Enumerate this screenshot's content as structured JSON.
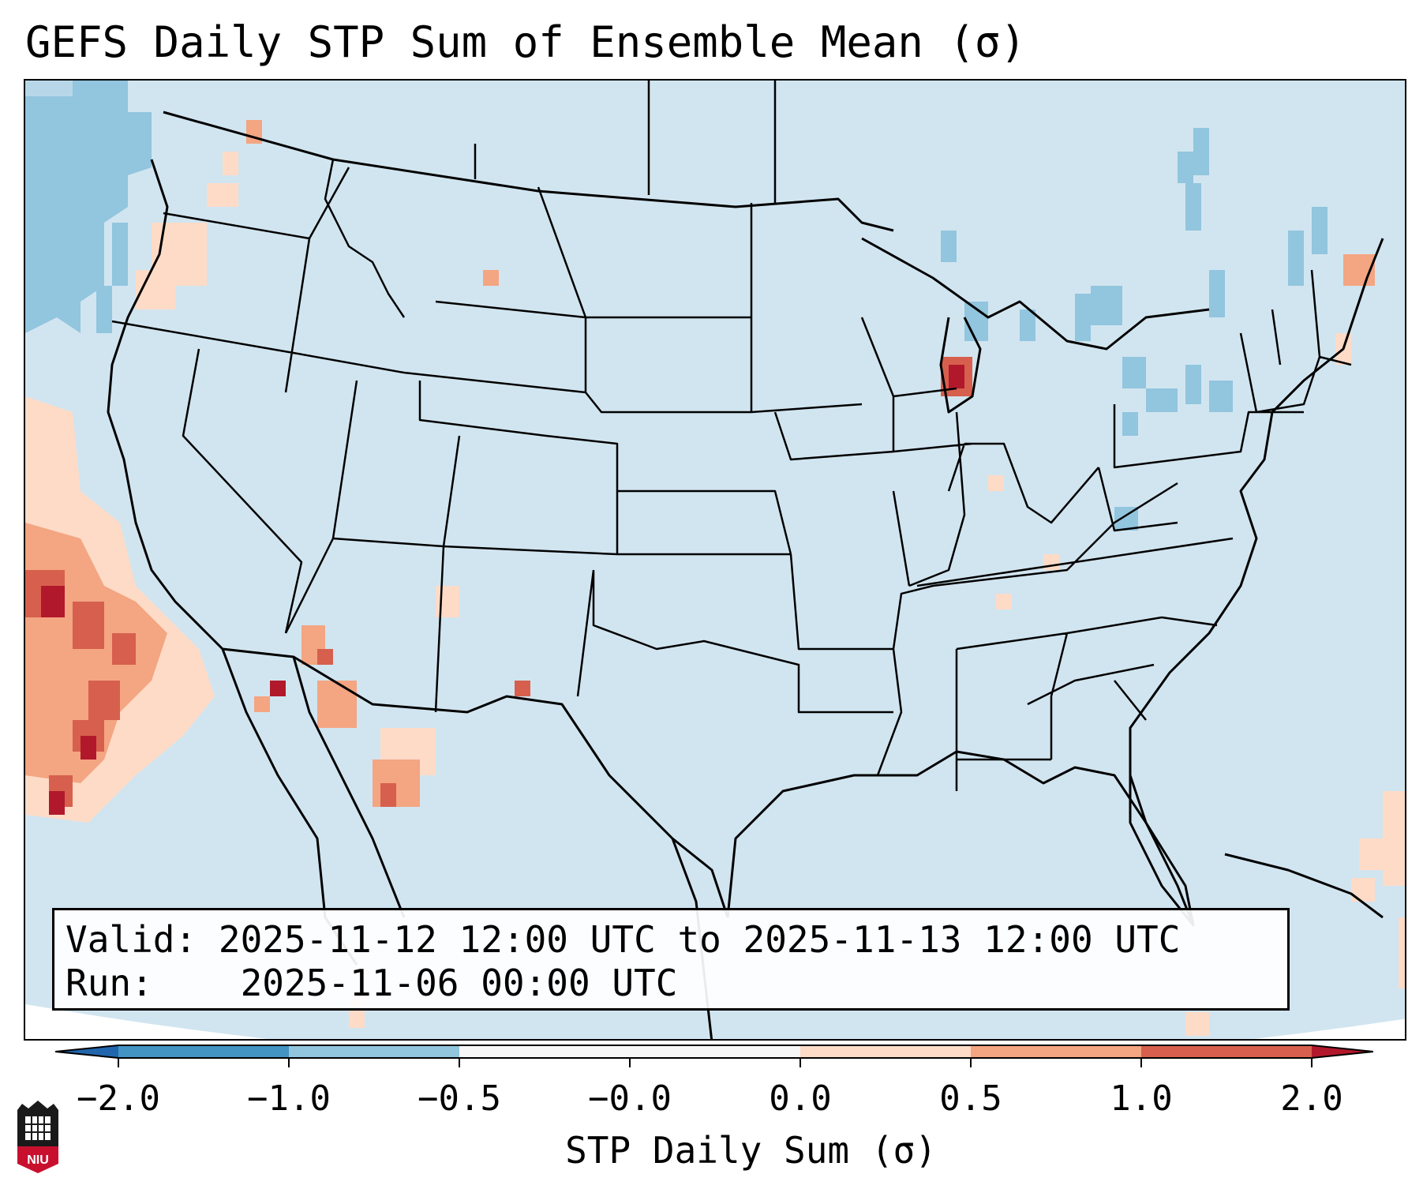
{
  "title": "GEFS Daily STP Sum of Ensemble Mean (σ)",
  "info": {
    "valid_label": "Valid:",
    "valid_value": "2025-11-12 12:00 UTC to 2025-11-13 12:00 UTC",
    "run_label": "Run:",
    "run_value": "2025-11-06 00:00 UTC"
  },
  "colorbar": {
    "label": "STP Daily Sum (σ)",
    "ticks": [
      "−2.0",
      "−1.0",
      "−0.5",
      "−0.0",
      "0.0",
      "0.5",
      "1.0",
      "2.0"
    ],
    "colors": [
      "#4393c3",
      "#92c5de",
      "#f7f7f7",
      "#fddbc7",
      "#f4a582",
      "#d6604d"
    ],
    "under_color": "#2166ac",
    "over_color": "#b2182b"
  },
  "map": {
    "background_color": "#d1e5f0",
    "region": "Continental United States"
  },
  "logo": {
    "text": "NIU"
  }
}
